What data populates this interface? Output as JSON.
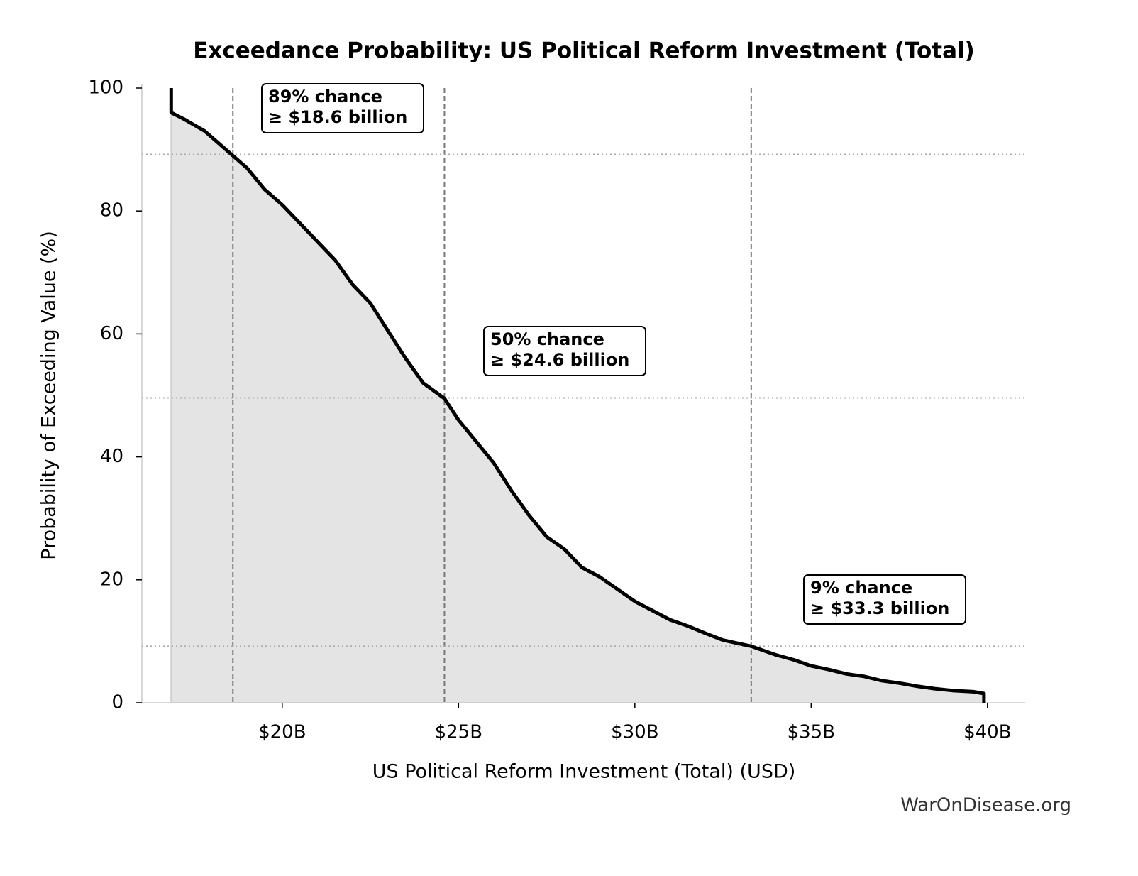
{
  "chart_data": {
    "type": "line",
    "title": "Exceedance Probability: US Political Reform Investment (Total)",
    "xlabel": "US Political Reform Investment (Total) (USD)",
    "ylabel": "Probability of Exceeding Value (%)",
    "source": "WarOnDisease.org",
    "x": [
      16850000000,
      16850000000,
      17200000000,
      17500000000,
      17800000000,
      18000000000,
      18300000000,
      18600000000,
      19000000000,
      19500000000,
      20000000000,
      20500000000,
      21000000000,
      21500000000,
      22000000000,
      22500000000,
      23000000000,
      23500000000,
      24000000000,
      24600000000,
      25000000000,
      25500000000,
      26000000000,
      26500000000,
      27000000000,
      27500000000,
      28000000000,
      28500000000,
      29000000000,
      29500000000,
      30000000000,
      30500000000,
      31000000000,
      31500000000,
      32000000000,
      32500000000,
      33300000000,
      34000000000,
      34500000000,
      35000000000,
      35500000000,
      36000000000,
      36500000000,
      37000000000,
      37500000000,
      38000000000,
      38500000000,
      39000000000,
      39600000000,
      39900000000,
      39900000000
    ],
    "values": [
      100,
      96,
      95,
      94,
      93,
      92,
      90.5,
      89,
      87,
      83.5,
      81,
      78,
      75,
      72,
      68,
      65,
      60.5,
      56,
      52,
      49.5,
      46,
      42.5,
      39,
      34.5,
      30.5,
      27,
      25,
      22,
      20.5,
      18.5,
      16.5,
      15,
      13.5,
      12.5,
      11.3,
      10.2,
      9.2,
      7.8,
      7,
      6,
      5.4,
      4.7,
      4.3,
      3.6,
      3.2,
      2.7,
      2.3,
      2.0,
      1.8,
      1.5,
      0
    ],
    "color": "#000000",
    "fill_color": "#e4e4e4",
    "xlim": [
      16020000000,
      41070000000
    ],
    "ylim": [
      0,
      100
    ],
    "xticks": [
      {
        "value": 20000000000,
        "label": "$20B"
      },
      {
        "value": 25000000000,
        "label": "$25B"
      },
      {
        "value": 30000000000,
        "label": "$30B"
      },
      {
        "value": 35000000000,
        "label": "$35B"
      },
      {
        "value": 40000000000,
        "label": "$40B"
      }
    ],
    "yticks": [
      0,
      20,
      40,
      60,
      80,
      100
    ],
    "vlines": [
      18600000000,
      24600000000,
      33300000000
    ],
    "hlines": [
      89.2,
      49.6,
      9.2
    ],
    "annotations": [
      [
        "89% chance",
        "≥ $18.6 billion"
      ],
      [
        "50% chance",
        "≥ $24.6 billion"
      ],
      [
        "9% chance",
        "≥ $33.3 billion"
      ]
    ]
  }
}
